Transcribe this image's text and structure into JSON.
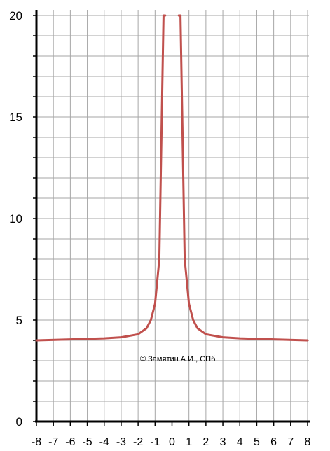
{
  "chart_data": {
    "type": "line",
    "title": "",
    "xlabel": "",
    "ylabel": "",
    "xlim": [
      -8,
      8
    ],
    "ylim": [
      0,
      20
    ],
    "grid": true,
    "x_ticks": [
      "-8",
      "-7",
      "-6",
      "-5",
      "-4",
      "-3",
      "-2",
      "-1",
      "0",
      "1",
      "2",
      "3",
      "4",
      "5",
      "6",
      "7",
      "8"
    ],
    "y_ticks": [
      "0",
      "5",
      "10",
      "15",
      "20"
    ],
    "line_color": "#c0504d",
    "series": [
      {
        "x": [
          -8,
          -6,
          -4,
          -3,
          -2,
          -1.5,
          -1.25,
          -1,
          -0.75,
          -0.5,
          -0.4
        ],
        "y": [
          4.0,
          4.05,
          4.1,
          4.15,
          4.3,
          4.6,
          5.0,
          5.8,
          8.0,
          20.0,
          20.0
        ]
      },
      {
        "x": [
          0.4,
          0.5,
          0.75,
          1,
          1.25,
          1.5,
          2,
          3,
          4,
          6,
          8
        ],
        "y": [
          20.0,
          20.0,
          8.0,
          5.8,
          5.0,
          4.6,
          4.3,
          4.15,
          4.1,
          4.05,
          4.0
        ]
      }
    ],
    "annotation": "© Замятин А.И., СПб"
  }
}
